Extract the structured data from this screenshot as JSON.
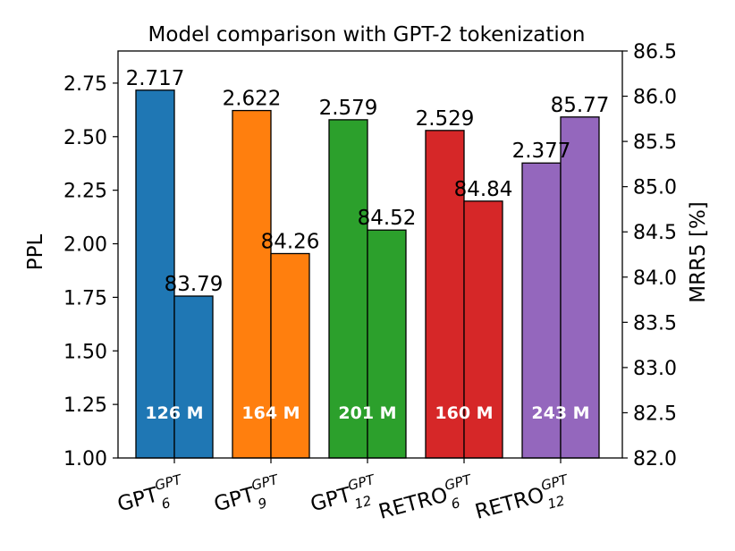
{
  "chart_data": {
    "type": "bar",
    "title": "Model comparison with GPT-2 tokenization",
    "ylabel_left": "PPL",
    "ylabel_right": "MRR5 [%]",
    "ylim_left": [
      1.0,
      2.9
    ],
    "ylim_right": [
      82.0,
      86.5
    ],
    "yticks_left": [
      "1.00",
      "1.25",
      "1.50",
      "1.75",
      "2.00",
      "2.25",
      "2.50",
      "2.75"
    ],
    "yticks_right": [
      "82.0",
      "82.5",
      "83.0",
      "83.5",
      "84.0",
      "84.5",
      "85.0",
      "85.5",
      "86.0",
      "86.5"
    ],
    "grid": false,
    "categories": [
      {
        "base": "GPT",
        "sub": "6",
        "sup": "GPT"
      },
      {
        "base": "GPT",
        "sub": "9",
        "sup": "GPT"
      },
      {
        "base": "GPT",
        "sub": "12",
        "sup": "GPT"
      },
      {
        "base": "RETRO",
        "sub": "6",
        "sup": "GPT"
      },
      {
        "base": "RETRO",
        "sub": "12",
        "sup": "GPT"
      }
    ],
    "params": [
      "126 M",
      "164 M",
      "201 M",
      "160 M",
      "243 M"
    ],
    "colors": [
      "#1f77b4",
      "#ff7f0e",
      "#2ca02c",
      "#d62728",
      "#9467bd"
    ],
    "series": [
      {
        "name": "PPL",
        "axis": "left",
        "values": [
          2.717,
          2.622,
          2.579,
          2.529,
          2.377
        ],
        "labels": [
          "2.717",
          "2.622",
          "2.579",
          "2.529",
          "2.377"
        ]
      },
      {
        "name": "MRR5",
        "axis": "right",
        "values": [
          83.79,
          84.26,
          84.52,
          84.84,
          85.77
        ],
        "labels": [
          "83.79",
          "84.26",
          "84.52",
          "84.84",
          "85.77"
        ]
      }
    ]
  }
}
